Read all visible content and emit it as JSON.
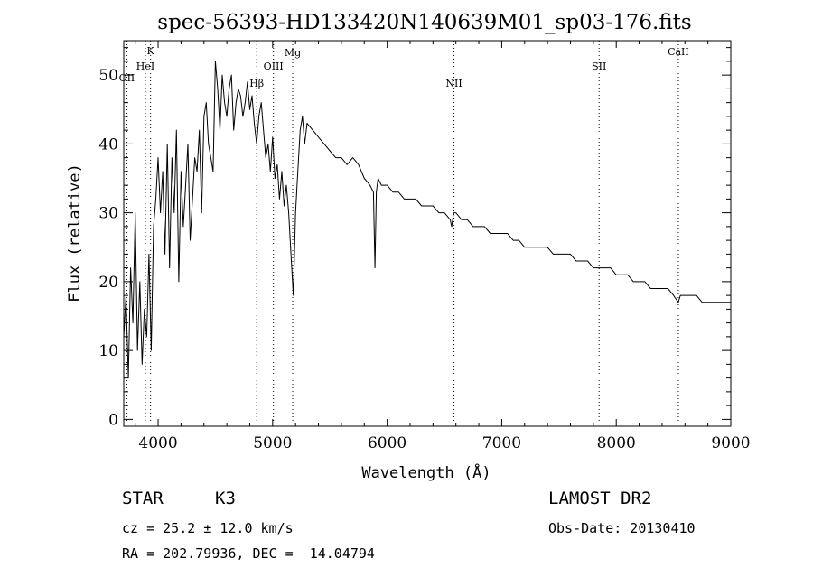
{
  "chart_data": {
    "type": "line",
    "title": "spec-56393-HD133420N140639M01_sp03-176.fits",
    "xlabel": "Wavelength (Å)",
    "ylabel": "Flux (relative)",
    "xlim": [
      3700,
      9000
    ],
    "ylim": [
      -1,
      55
    ],
    "xticks": [
      "4000",
      "5000",
      "6000",
      "7000",
      "8000",
      "9000"
    ],
    "yticks": [
      "0",
      "10",
      "20",
      "30",
      "40",
      "50"
    ],
    "grid": false,
    "series": [
      {
        "x": [
          3700,
          3720,
          3740,
          3760,
          3780,
          3800,
          3820,
          3840,
          3860,
          3880,
          3900,
          3920,
          3940,
          3960,
          3980,
          4000,
          4020,
          4040,
          4060,
          4080,
          4100,
          4120,
          4140,
          4160,
          4180,
          4200,
          4220,
          4240,
          4260,
          4280,
          4300,
          4320,
          4340,
          4360,
          4380,
          4400,
          4420,
          4440,
          4460,
          4480,
          4500,
          4520,
          4540,
          4560,
          4580,
          4600,
          4620,
          4640,
          4660,
          4680,
          4700,
          4720,
          4740,
          4760,
          4780,
          4800,
          4820,
          4840,
          4860,
          4880,
          4900,
          4920,
          4940,
          4960,
          4980,
          5000,
          5020,
          5040,
          5060,
          5080,
          5100,
          5120,
          5140,
          5160,
          5180,
          5200,
          5220,
          5240,
          5260,
          5280,
          5300,
          5350,
          5400,
          5450,
          5500,
          5550,
          5600,
          5650,
          5700,
          5750,
          5800,
          5850,
          5880,
          5893,
          5905,
          5920,
          5950,
          6000,
          6050,
          6100,
          6150,
          6200,
          6250,
          6300,
          6350,
          6400,
          6450,
          6500,
          6550,
          6563,
          6580,
          6600,
          6650,
          6700,
          6750,
          6800,
          6850,
          6900,
          6950,
          7000,
          7050,
          7100,
          7150,
          7200,
          7250,
          7300,
          7350,
          7400,
          7450,
          7500,
          7550,
          7600,
          7650,
          7700,
          7750,
          7800,
          7850,
          7900,
          7950,
          8000,
          8050,
          8100,
          8150,
          8200,
          8250,
          8300,
          8350,
          8400,
          8450,
          8500,
          8542,
          8560,
          8600,
          8650,
          8700,
          8750,
          8800,
          8850,
          8900,
          8950,
          9000
        ],
        "y": [
          12,
          18,
          6,
          22,
          14,
          30,
          10,
          20,
          8,
          16,
          12,
          24,
          10,
          28,
          32,
          38,
          30,
          36,
          24,
          40,
          22,
          38,
          30,
          42,
          20,
          36,
          28,
          34,
          40,
          26,
          32,
          38,
          36,
          42,
          30,
          44,
          46,
          40,
          38,
          36,
          52,
          48,
          42,
          50,
          46,
          44,
          48,
          50,
          42,
          46,
          48,
          47,
          44,
          46,
          49,
          45,
          47,
          43,
          40,
          44,
          46,
          42,
          38,
          40,
          36,
          41,
          35,
          37,
          32,
          36,
          31,
          34,
          30,
          24,
          18,
          30,
          36,
          42,
          44,
          40,
          43,
          42,
          41,
          40,
          39,
          38,
          38,
          37,
          38,
          37,
          35,
          34,
          33,
          22,
          33,
          35,
          34,
          34,
          33,
          33,
          32,
          32,
          32,
          31,
          31,
          31,
          30,
          30,
          29,
          28,
          30,
          30,
          29,
          29,
          28,
          28,
          28,
          27,
          27,
          27,
          27,
          26,
          26,
          25,
          25,
          25,
          25,
          25,
          24,
          24,
          24,
          24,
          23,
          23,
          23,
          22,
          22,
          22,
          22,
          21,
          21,
          21,
          20,
          20,
          20,
          19,
          19,
          19,
          19,
          18,
          17,
          18,
          18,
          18,
          18,
          17,
          17,
          17,
          17,
          17,
          17
        ]
      }
    ],
    "lines": [
      {
        "label": "OII",
        "x": 3727
      },
      {
        "label": "K",
        "x": 3934
      },
      {
        "label": "HeI",
        "x": 3889
      },
      {
        "label": "Hβ",
        "x": 4861
      },
      {
        "label": "OIII",
        "x": 5007
      },
      {
        "label": "Mg",
        "x": 5175
      },
      {
        "label": "NII",
        "x": 6583
      },
      {
        "label": "SII",
        "x": 7850
      },
      {
        "label": "CaII",
        "x": 8542
      }
    ]
  },
  "info": {
    "object_class": "STAR",
    "subclass": "K3",
    "survey": "LAMOST DR2",
    "cz": "cz = 25.2 ± 12.0 km/s",
    "obs_date": "Obs-Date: 20130410",
    "radec": "RA = 202.79936, DEC =  14.04794"
  }
}
